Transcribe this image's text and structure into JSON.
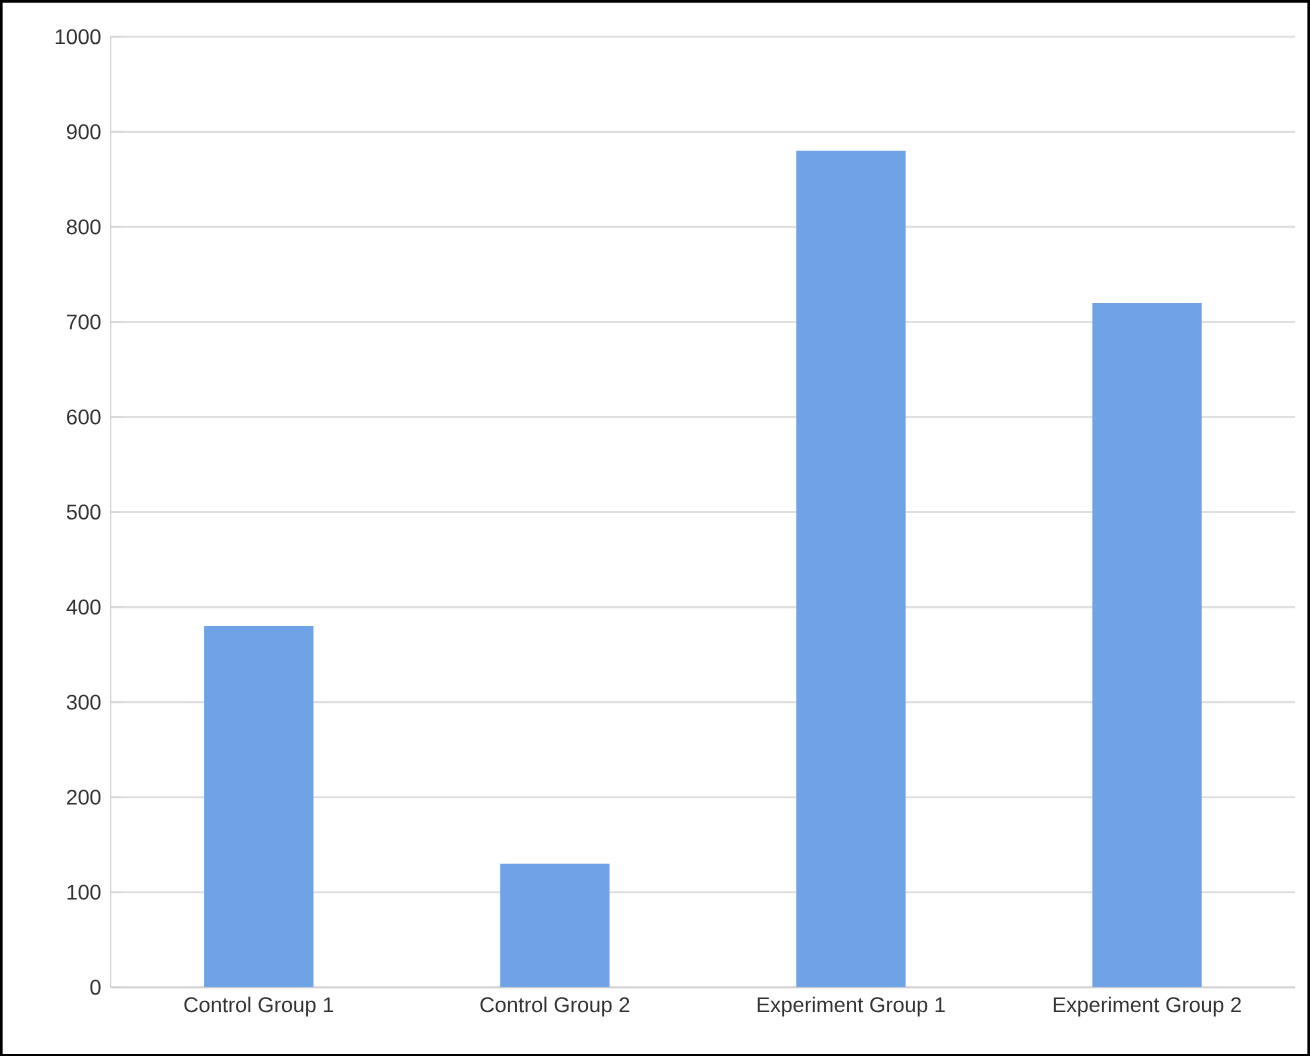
{
  "chart_data": {
    "type": "bar",
    "categories": [
      "Control Group 1",
      "Control Group 2",
      "Experiment Group 1",
      "Experiment Group 2"
    ],
    "values": [
      380,
      130,
      880,
      720
    ],
    "color": "#6fa3e6",
    "ylim": [
      0,
      1000
    ],
    "yticks": [
      0,
      100,
      200,
      300,
      400,
      500,
      600,
      700,
      800,
      900,
      1000
    ],
    "grid": "y"
  }
}
